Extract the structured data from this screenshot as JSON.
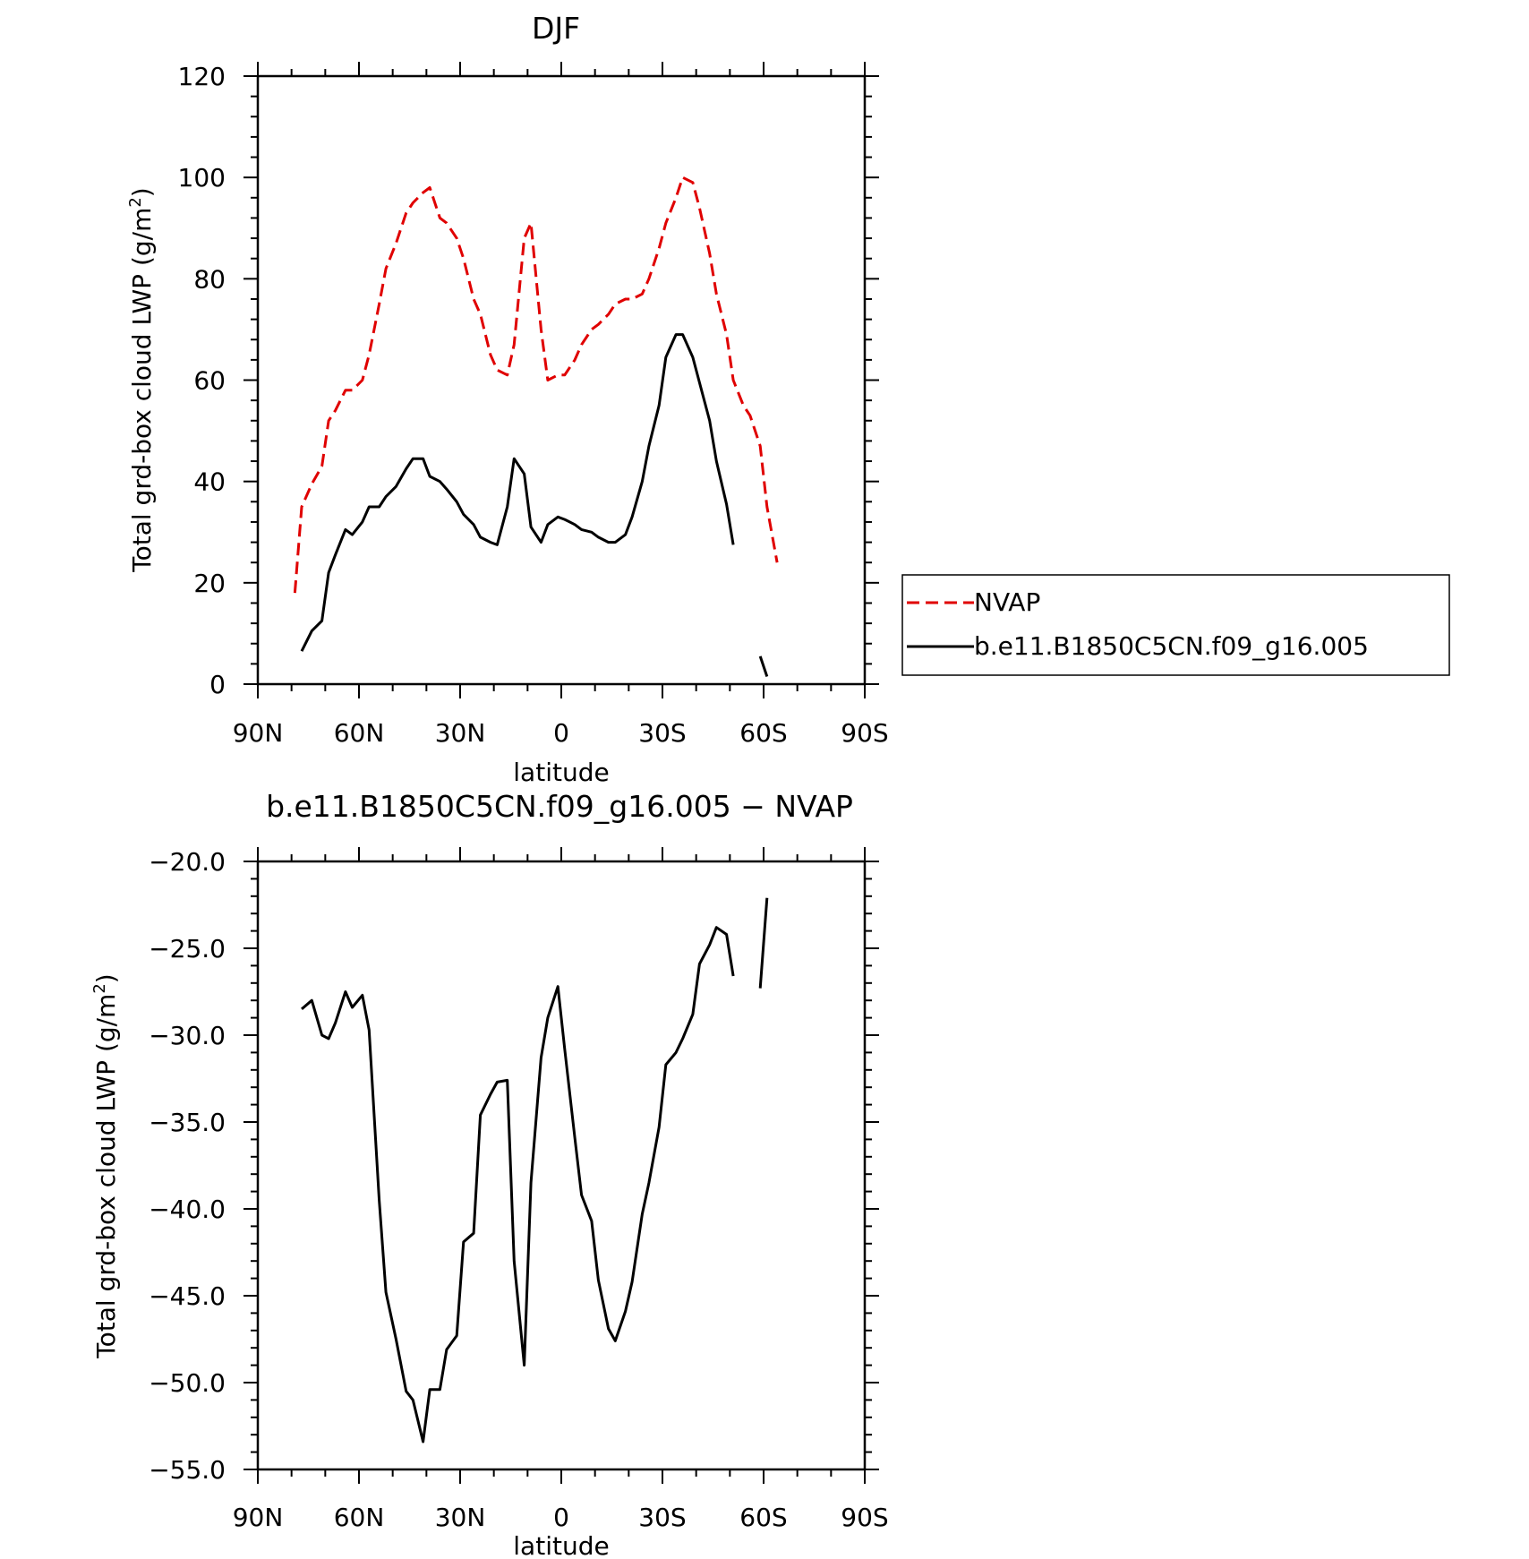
{
  "chart_data": [
    {
      "type": "line",
      "title": "DJF",
      "xlabel": "latitude",
      "ylabel": "Total grd-box cloud LWP (g/m",
      "ylabel_sup": "2",
      "ylabel_end": ")",
      "x_ticks": [
        {
          "value": -90,
          "label": "90N"
        },
        {
          "value": -60,
          "label": "60N"
        },
        {
          "value": -30,
          "label": "30N"
        },
        {
          "value": 0,
          "label": "0"
        },
        {
          "value": 30,
          "label": "30S"
        },
        {
          "value": 60,
          "label": "60S"
        },
        {
          "value": 90,
          "label": "90S"
        }
      ],
      "y_ticks": [
        {
          "value": 0,
          "label": "0"
        },
        {
          "value": 20,
          "label": "20"
        },
        {
          "value": 40,
          "label": "40"
        },
        {
          "value": 60,
          "label": "60"
        },
        {
          "value": 80,
          "label": "80"
        },
        {
          "value": 100,
          "label": "100"
        },
        {
          "value": 120,
          "label": "120"
        }
      ],
      "xlim": [
        -90,
        90
      ],
      "ylim": [
        0,
        120
      ],
      "grid": false,
      "legend": "right",
      "series": [
        {
          "name": "NVAP",
          "color": "#e00000",
          "dash": "dashed",
          "segments": [
            [
              [
                -79,
                18
              ],
              [
                -77,
                35
              ],
              [
                -74,
                39.5
              ],
              [
                -71,
                43
              ],
              [
                -69,
                52
              ],
              [
                -67,
                54
              ],
              [
                -64,
                58
              ],
              [
                -62,
                58
              ],
              [
                -59,
                60
              ],
              [
                -57,
                65
              ],
              [
                -54,
                75
              ],
              [
                -52,
                82
              ],
              [
                -49,
                87
              ],
              [
                -46,
                93
              ],
              [
                -44,
                95
              ],
              [
                -41,
                97
              ],
              [
                -39,
                98
              ],
              [
                -36,
                92
              ],
              [
                -34,
                91
              ],
              [
                -31,
                88
              ],
              [
                -29,
                84
              ],
              [
                -26,
                76
              ],
              [
                -24,
                73
              ],
              [
                -21,
                65
              ],
              [
                -19,
                62
              ],
              [
                -16,
                61
              ],
              [
                -14,
                67
              ],
              [
                -11,
                88
              ],
              [
                -9,
                91
              ],
              [
                -6,
                70
              ],
              [
                -4,
                60
              ],
              [
                -1,
                61
              ],
              [
                1,
                61
              ],
              [
                4,
                64
              ],
              [
                6,
                67
              ],
              [
                9,
                70
              ],
              [
                11,
                71
              ],
              [
                14,
                73
              ],
              [
                16,
                75
              ],
              [
                19,
                76
              ],
              [
                21,
                76
              ],
              [
                24,
                77
              ],
              [
                26,
                80
              ],
              [
                29,
                86
              ],
              [
                31,
                91
              ],
              [
                34,
                96
              ],
              [
                36,
                100
              ],
              [
                39,
                99
              ],
              [
                41,
                94
              ],
              [
                44,
                85
              ],
              [
                46,
                77
              ],
              [
                49,
                69
              ],
              [
                51,
                60
              ],
              [
                54,
                55
              ],
              [
                56,
                53
              ],
              [
                59,
                47
              ],
              [
                61,
                35
              ],
              [
                64,
                24
              ]
            ]
          ]
        },
        {
          "name": "b.e11.B1850C5CN.f09_g16.005",
          "color": "#000000",
          "dash": "solid",
          "segments": [
            [
              [
                -77,
                6.5
              ],
              [
                -74,
                10.5
              ],
              [
                -71,
                12.5
              ],
              [
                -69,
                22
              ],
              [
                -67,
                25.5
              ],
              [
                -64,
                30.5
              ],
              [
                -62,
                29.5
              ],
              [
                -59,
                32
              ],
              [
                -57,
                35
              ],
              [
                -54,
                35
              ],
              [
                -52,
                37
              ],
              [
                -49,
                39
              ],
              [
                -46,
                42.5
              ],
              [
                -44,
                44.5
              ],
              [
                -41,
                44.5
              ],
              [
                -39,
                41
              ],
              [
                -36,
                40
              ],
              [
                -34,
                38.5
              ],
              [
                -31,
                36
              ],
              [
                -29,
                33.5
              ],
              [
                -26,
                31.5
              ],
              [
                -24,
                29
              ],
              [
                -21,
                28
              ],
              [
                -19,
                27.5
              ],
              [
                -16,
                35
              ],
              [
                -14,
                44.5
              ],
              [
                -11,
                41.5
              ],
              [
                -9,
                31
              ],
              [
                -6,
                28
              ],
              [
                -4,
                31.5
              ],
              [
                -1,
                33
              ],
              [
                1,
                32.5
              ],
              [
                4,
                31.5
              ],
              [
                6,
                30.5
              ],
              [
                9,
                30
              ],
              [
                11,
                29
              ],
              [
                14,
                28
              ],
              [
                16,
                28
              ],
              [
                19,
                29.5
              ],
              [
                21,
                33
              ],
              [
                24,
                40
              ],
              [
                26,
                47
              ],
              [
                29,
                55
              ],
              [
                31,
                64.5
              ],
              [
                34,
                69
              ],
              [
                36,
                69
              ],
              [
                39,
                64.5
              ],
              [
                41,
                59.5
              ],
              [
                44,
                52
              ],
              [
                46,
                44
              ],
              [
                49,
                35.5
              ],
              [
                51,
                27.5
              ]
            ],
            [
              [
                59,
                5.5
              ],
              [
                61,
                1.5
              ]
            ]
          ]
        }
      ]
    },
    {
      "type": "line",
      "title": "b.e11.B1850C5CN.f09_g16.005 − NVAP",
      "xlabel": "latitude",
      "ylabel": "Total grd-box cloud LWP (g/m",
      "ylabel_sup": "2",
      "ylabel_end": ")",
      "x_ticks": [
        {
          "value": -90,
          "label": "90N"
        },
        {
          "value": -60,
          "label": "60N"
        },
        {
          "value": -30,
          "label": "30N"
        },
        {
          "value": 0,
          "label": "0"
        },
        {
          "value": 30,
          "label": "30S"
        },
        {
          "value": 60,
          "label": "60S"
        },
        {
          "value": 90,
          "label": "90S"
        }
      ],
      "y_ticks": [
        {
          "value": -55,
          "label": "−55.0"
        },
        {
          "value": -50,
          "label": "−50.0"
        },
        {
          "value": -45,
          "label": "−45.0"
        },
        {
          "value": -40,
          "label": "−40.0"
        },
        {
          "value": -35,
          "label": "−35.0"
        },
        {
          "value": -30,
          "label": "−30.0"
        },
        {
          "value": -25,
          "label": "−25.0"
        },
        {
          "value": -20,
          "label": "−20.0"
        }
      ],
      "xlim": [
        -90,
        90
      ],
      "ylim": [
        -55,
        -20
      ],
      "grid": false,
      "series": [
        {
          "color": "#000000",
          "dash": "solid",
          "segments": [
            [
              [
                -77,
                -28.5
              ],
              [
                -74,
                -28
              ],
              [
                -71,
                -30
              ],
              [
                -69,
                -30.2
              ],
              [
                -67,
                -29.3
              ],
              [
                -64,
                -27.5
              ],
              [
                -62,
                -28.4
              ],
              [
                -59,
                -27.7
              ],
              [
                -57,
                -29.7
              ],
              [
                -54,
                -39.5
              ],
              [
                -52,
                -44.8
              ],
              [
                -49,
                -47.5
              ],
              [
                -46,
                -50.5
              ],
              [
                -44,
                -51
              ],
              [
                -41,
                -53.4
              ],
              [
                -39,
                -50.4
              ],
              [
                -36,
                -50.4
              ],
              [
                -34,
                -48.1
              ],
              [
                -31,
                -47.3
              ],
              [
                -29,
                -41.9
              ],
              [
                -26,
                -41.4
              ],
              [
                -24,
                -34.6
              ],
              [
                -21,
                -33.4
              ],
              [
                -19,
                -32.7
              ],
              [
                -16,
                -32.6
              ],
              [
                -14,
                -43
              ],
              [
                -11,
                -49
              ],
              [
                -9,
                -38.5
              ],
              [
                -6,
                -31.3
              ],
              [
                -4,
                -29
              ],
              [
                -1,
                -27.2
              ],
              [
                1,
                -30.8
              ],
              [
                4,
                -35.9
              ],
              [
                6,
                -39.2
              ],
              [
                9,
                -40.7
              ],
              [
                11,
                -44.1
              ],
              [
                14,
                -46.9
              ],
              [
                16,
                -47.6
              ],
              [
                19,
                -45.9
              ],
              [
                21,
                -44.2
              ],
              [
                24,
                -40.3
              ],
              [
                26,
                -38.5
              ],
              [
                29,
                -35.3
              ],
              [
                31,
                -31.7
              ],
              [
                34,
                -31
              ],
              [
                36,
                -30.2
              ],
              [
                39,
                -28.8
              ],
              [
                41,
                -25.9
              ],
              [
                44,
                -24.8
              ],
              [
                46,
                -23.8
              ],
              [
                49,
                -24.2
              ],
              [
                51,
                -26.6
              ]
            ],
            [
              [
                59,
                -27.3
              ],
              [
                61,
                -22.1
              ]
            ]
          ]
        }
      ]
    }
  ]
}
